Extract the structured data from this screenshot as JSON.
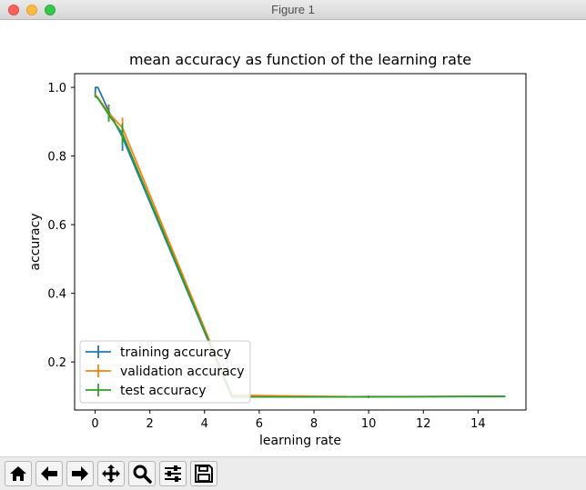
{
  "window": {
    "title": "Figure 1"
  },
  "toolbar": {
    "buttons": [
      {
        "name": "home-button",
        "icon": "home-icon"
      },
      {
        "name": "back-button",
        "icon": "arrow-left-icon"
      },
      {
        "name": "forward-button",
        "icon": "arrow-right-icon"
      },
      {
        "name": "pan-button",
        "icon": "move-icon"
      },
      {
        "name": "zoom-button",
        "icon": "magnifier-icon"
      },
      {
        "name": "configure-subplots-button",
        "icon": "sliders-icon"
      },
      {
        "name": "save-button",
        "icon": "floppy-disk-icon"
      }
    ]
  },
  "chart_data": {
    "type": "line",
    "title": "mean accuracy as function of the learning rate",
    "xlabel": "learning rate",
    "ylabel": "accuracy",
    "xlim": [
      -0.75,
      15.75
    ],
    "ylim": [
      0.06,
      1.04
    ],
    "xticks": [
      0,
      2,
      4,
      6,
      8,
      10,
      12,
      14
    ],
    "yticks": [
      0.2,
      0.4,
      0.6,
      0.8,
      1.0
    ],
    "grid": false,
    "legend_position": "lower-left",
    "x": [
      0.001,
      0.01,
      0.1,
      0.5,
      1,
      5,
      10,
      15
    ],
    "series": [
      {
        "name": "training accuracy",
        "color": "#1f77b4",
        "values": [
          0.975,
          1.0,
          1.0,
          0.93,
          0.855,
          0.098,
          0.099,
          0.099
        ],
        "errors": [
          0,
          0,
          0,
          0.02,
          0.04,
          0,
          0.003,
          0
        ]
      },
      {
        "name": "validation accuracy",
        "color": "#ff7f0e",
        "values": [
          0.972,
          0.978,
          0.97,
          0.925,
          0.882,
          0.103,
          0.098,
          0.1
        ],
        "errors": [
          0,
          0,
          0,
          0.02,
          0.03,
          0,
          0.003,
          0
        ]
      },
      {
        "name": "test accuracy",
        "color": "#2ca02c",
        "values": [
          0.97,
          0.975,
          0.968,
          0.92,
          0.865,
          0.098,
          0.098,
          0.1
        ],
        "errors": [
          0,
          0,
          0,
          0.02,
          0.03,
          0,
          0.003,
          0
        ]
      }
    ]
  }
}
